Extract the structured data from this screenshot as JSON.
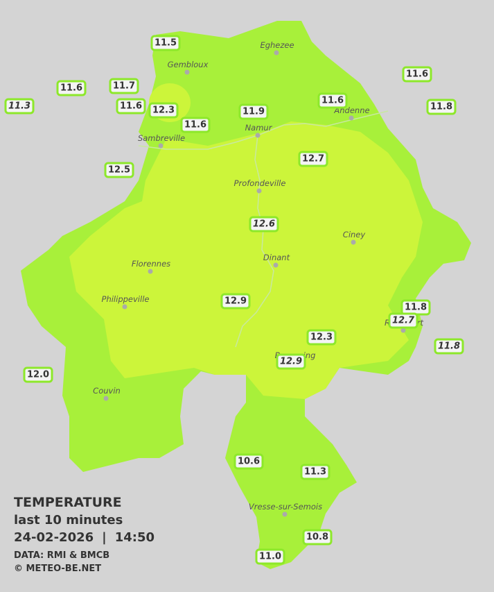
{
  "legend": {
    "title": "TEMPERATURE",
    "subtitle": "last 10 minutes",
    "date": "24-02-2026",
    "separator": "|",
    "time": "14:50",
    "source": "DATA: RMI & BMCB",
    "copyright": "© METEO-BE.NET"
  },
  "cities": [
    "Eghezee",
    "Gembloux",
    "Andenne",
    "Namur",
    "Sambreville",
    "Profondeville",
    "Ciney",
    "Dinant",
    "Florennes",
    "Philippeville",
    "Rochefort",
    "Beauraing",
    "Couvin",
    "Vresse-sur-Semois"
  ],
  "stations": [
    {
      "value": "11.5",
      "italic": false
    },
    {
      "value": "11.6",
      "italic": false
    },
    {
      "value": "11.7",
      "italic": false
    },
    {
      "value": "11.3",
      "italic": true
    },
    {
      "value": "11.6",
      "italic": false
    },
    {
      "value": "12.3",
      "italic": false
    },
    {
      "value": "11.6",
      "italic": false
    },
    {
      "value": "11.9",
      "italic": false
    },
    {
      "value": "11.6",
      "italic": false
    },
    {
      "value": "11.6",
      "italic": false
    },
    {
      "value": "11.8",
      "italic": false
    },
    {
      "value": "12.5",
      "italic": false
    },
    {
      "value": "12.7",
      "italic": false
    },
    {
      "value": "12.6",
      "italic": true
    },
    {
      "value": "12.9",
      "italic": false
    },
    {
      "value": "11.8",
      "italic": false
    },
    {
      "value": "12.7",
      "italic": true
    },
    {
      "value": "12.3",
      "italic": false
    },
    {
      "value": "12.9",
      "italic": true
    },
    {
      "value": "11.8",
      "italic": true
    },
    {
      "value": "12.0",
      "italic": false
    },
    {
      "value": "10.6",
      "italic": false
    },
    {
      "value": "11.3",
      "italic": false
    },
    {
      "value": "10.8",
      "italic": false
    },
    {
      "value": "11.0",
      "italic": false
    }
  ]
}
